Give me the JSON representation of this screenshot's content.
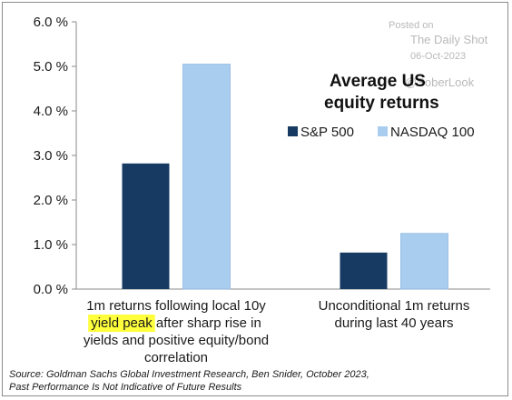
{
  "chart_data": {
    "type": "bar",
    "title_lines": [
      "Average US",
      "equity returns"
    ],
    "categories": [
      {
        "lines": [
          "1m returns following local 10y",
          "yield peak after sharp rise in",
          "yields and positive equity/bond",
          "correlation"
        ],
        "highlight": "yield peak"
      },
      {
        "lines": [
          "Unconditional 1m returns",
          "during last 40 years"
        ]
      }
    ],
    "series": [
      {
        "name": "S&P 500",
        "color": "#173a62",
        "values": [
          2.82,
          0.82
        ]
      },
      {
        "name": "NASDAQ 100",
        "color": "#a9cdef",
        "values": [
          5.05,
          1.25
        ]
      }
    ],
    "ylim": [
      0,
      6
    ],
    "yticks": [
      0,
      1,
      2,
      3,
      4,
      5,
      6
    ],
    "ytick_labels": [
      "0.0 %",
      "1.0 %",
      "2.0 %",
      "3.0 %",
      "4.0 %",
      "5.0 %",
      "6.0 %"
    ],
    "grid": false,
    "legend": "right",
    "highlight_color": "#ffff3c"
  },
  "watermark": {
    "posted_on": "Posted on",
    "site": "The Daily Shot",
    "date": "06-Oct-2023",
    "brand": "@SoberLook"
  },
  "source": {
    "line1": "Source: Goldman Sachs Global Investment Research, Ben Snider, October 2023,",
    "line2": "Past Performance Is Not Indicative of Future Results"
  }
}
